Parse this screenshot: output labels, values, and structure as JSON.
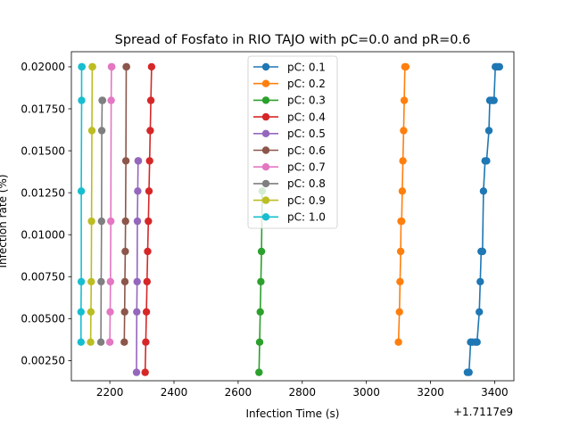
{
  "chart_data": {
    "type": "line",
    "title": "Spread of Fosfato in RIO TAJO with pC=0.0 and pR=0.6",
    "xlabel": "Infection Time (s)",
    "ylabel": "Infection rate (%)",
    "x_offset_label": "+1.7117e9",
    "xlim": [
      2080,
      3460
    ],
    "ylim": [
      0.0013,
      0.0209
    ],
    "xticks": [
      2200,
      2400,
      2600,
      2800,
      3000,
      3200,
      3400
    ],
    "xtick_labels": [
      "2200",
      "2400",
      "2600",
      "2800",
      "3000",
      "3200",
      "3400"
    ],
    "yticks": [
      0.0025,
      0.005,
      0.0075,
      0.01,
      0.0125,
      0.015,
      0.0175,
      0.02
    ],
    "ytick_labels": [
      "0.00250",
      "0.00500",
      "0.00750",
      "0.01000",
      "0.01250",
      "0.01500",
      "0.01750",
      "0.02000"
    ],
    "grid": false,
    "legend_position": "upper-center",
    "series": [
      {
        "name": "pC: 0.1",
        "color": "#1f77b4",
        "x": [
          3315,
          3320,
          3325,
          3330,
          3340,
          3345,
          3352,
          3355,
          3358,
          3362,
          3365,
          3370,
          3375,
          3382,
          3385,
          3390,
          3395,
          3398,
          3402,
          3405,
          3410,
          3415
        ],
        "y": [
          0.0018,
          0.0018,
          0.0036,
          0.0036,
          0.0036,
          0.0036,
          0.0054,
          0.0072,
          0.009,
          0.009,
          0.0126,
          0.0144,
          0.0144,
          0.0162,
          0.018,
          0.018,
          0.018,
          0.018,
          0.02,
          0.02,
          0.02,
          0.02
        ]
      },
      {
        "name": "pC: 0.2",
        "color": "#ff7f0e",
        "x": [
          3100,
          3103,
          3105,
          3107,
          3108,
          3110,
          3112,
          3114,
          3116,
          3118,
          3120,
          3123
        ],
        "y": [
          0.0036,
          0.0054,
          0.0072,
          0.009,
          0.0108,
          0.0108,
          0.0126,
          0.0144,
          0.0162,
          0.018,
          0.02,
          0.02
        ]
      },
      {
        "name": "pC: 0.3",
        "color": "#2ca02c",
        "x": [
          2665,
          2667,
          2669,
          2671,
          2673,
          2675
        ],
        "y": [
          0.0018,
          0.0036,
          0.0054,
          0.0072,
          0.009,
          0.0126
        ]
      },
      {
        "name": "pC: 0.4",
        "color": "#d62728",
        "x": [
          2310,
          2312,
          2314,
          2316,
          2318,
          2320,
          2322,
          2324,
          2326,
          2328,
          2330
        ],
        "y": [
          0.0018,
          0.0036,
          0.0054,
          0.0072,
          0.009,
          0.0108,
          0.0126,
          0.0144,
          0.0162,
          0.018,
          0.02
        ]
      },
      {
        "name": "pC: 0.5",
        "color": "#9467bd",
        "x": [
          2283,
          2284,
          2285,
          2286,
          2287,
          2288,
          2289
        ],
        "y": [
          0.0018,
          0.0054,
          0.0072,
          0.0108,
          0.0126,
          0.0144,
          0.0144
        ]
      },
      {
        "name": "pC: 0.6",
        "color": "#8c564b",
        "x": [
          2245,
          2246,
          2247,
          2248,
          2249,
          2250,
          2251,
          2252
        ],
        "y": [
          0.0036,
          0.0054,
          0.0072,
          0.009,
          0.0108,
          0.0144,
          0.02,
          0.02
        ]
      },
      {
        "name": "pC: 0.7",
        "color": "#e377c2",
        "x": [
          2200,
          2201,
          2202,
          2203,
          2204,
          2205,
          2206
        ],
        "y": [
          0.0036,
          0.0054,
          0.0072,
          0.0108,
          0.018,
          0.02,
          0.02
        ]
      },
      {
        "name": "pC: 0.8",
        "color": "#7f7f7f",
        "x": [
          2172,
          2173,
          2174,
          2175,
          2176,
          2177
        ],
        "y": [
          0.0036,
          0.0072,
          0.0108,
          0.0162,
          0.018,
          0.018
        ]
      },
      {
        "name": "pC: 0.9",
        "color": "#bcbd22",
        "x": [
          2140,
          2141,
          2142,
          2143,
          2144,
          2145,
          2146
        ],
        "y": [
          0.0036,
          0.0054,
          0.0072,
          0.0108,
          0.0162,
          0.02,
          0.02
        ]
      },
      {
        "name": "pC: 1.0",
        "color": "#17becf",
        "x": [
          2110,
          2110,
          2111,
          2111,
          2112,
          2112,
          2113
        ],
        "y": [
          0.0036,
          0.0054,
          0.0072,
          0.0126,
          0.018,
          0.02,
          0.02
        ]
      }
    ]
  }
}
